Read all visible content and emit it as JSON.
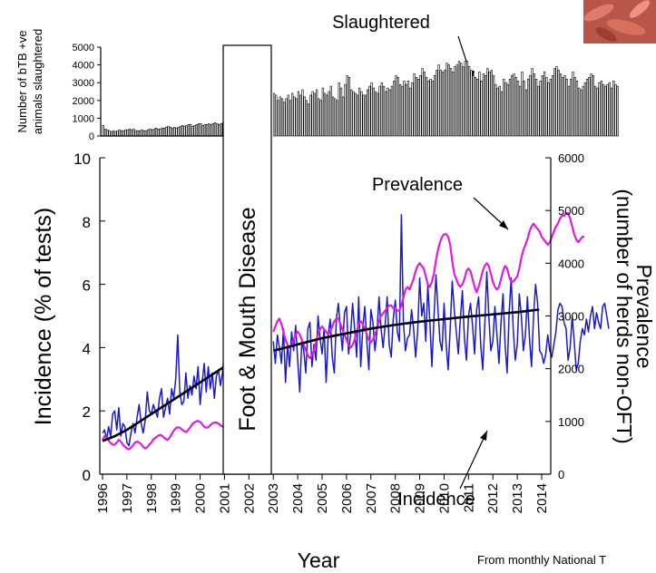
{
  "chart_data": [
    {
      "type": "bar",
      "name": "slaughtered",
      "ylabel_line1": "Number of bTB +ve",
      "ylabel_line2": "animals slaughtered",
      "ylim": [
        0,
        5000
      ],
      "yticks": [
        0,
        1000,
        2000,
        3000,
        4000,
        5000
      ],
      "annotation": "Slaughtered",
      "x_start": 1996.0,
      "x_step": 0.0833333,
      "segments": [
        {
          "x_start": 1996.0,
          "values": [
            600,
            400,
            350,
            300,
            250,
            300,
            250,
            300,
            350,
            300,
            300,
            350,
            350,
            400,
            350,
            400,
            300,
            300,
            300,
            350,
            300,
            300,
            350,
            400,
            350,
            400,
            450,
            400,
            400,
            450,
            450,
            500,
            550,
            500,
            450,
            500,
            450,
            500,
            550,
            600,
            550,
            600,
            650,
            650,
            550,
            600,
            650,
            700,
            700,
            600,
            650,
            650,
            700,
            650,
            700,
            750,
            700,
            650,
            700,
            750,
            700,
            850,
            800,
            750,
            700,
            750,
            700,
            800,
            750,
            700,
            900,
            850
          ]
        },
        {
          "x_start": 2003.0,
          "values": [
            2400,
            2300,
            2000,
            2200,
            2100,
            1900,
            2100,
            2300,
            2000,
            2400,
            2200,
            2100,
            2500,
            2300,
            2600,
            2200,
            2000,
            1800,
            2300,
            2500,
            2400,
            2600,
            2100,
            2000,
            2700,
            2400,
            2300,
            2500,
            2800,
            2200,
            2100,
            2000,
            3000,
            2700,
            2200,
            2900,
            3400,
            3300,
            2600,
            2500,
            2400,
            2300,
            2700,
            2500,
            2300,
            2300,
            2600,
            2800,
            3000,
            2700,
            2500,
            2400,
            2800,
            3000,
            2800,
            2500,
            2700,
            2600,
            2800,
            3100,
            3400,
            3300,
            2900,
            2800,
            3100,
            2900,
            3100,
            2700,
            3000,
            3500,
            3300,
            3200,
            3400,
            3800,
            3600,
            3300,
            3100,
            3200,
            3100,
            3400,
            3700,
            4000,
            3700,
            3600,
            3700,
            4100,
            4000,
            3800,
            3600,
            3900,
            4000,
            4200,
            4100,
            3900,
            4200,
            4200,
            3900,
            3700,
            3400,
            3300,
            3200,
            3600,
            3100,
            3500,
            3400,
            3800,
            3600,
            3700,
            3400,
            2900,
            2700,
            2800,
            2500,
            3200,
            3000,
            2900,
            3200,
            3400,
            3500,
            3300,
            3100,
            2800,
            3600,
            3100,
            2600,
            3200,
            3400,
            3800,
            3500,
            3200,
            2800,
            3100,
            3400,
            3600,
            3300,
            3000,
            3200,
            3400,
            3800,
            3900,
            3700,
            3500,
            3300,
            3400,
            3200,
            2800,
            3200,
            3600,
            3300,
            3100,
            2700,
            2600,
            2800,
            3000,
            3200,
            3300,
            3500,
            3400,
            2800,
            2700,
            3000,
            3100,
            2900,
            2800,
            2900,
            3000,
            2700,
            3100,
            2900,
            2800
          ]
        }
      ]
    },
    {
      "type": "line",
      "name": "main",
      "ylabel_left": "Incidence (% of tests)",
      "ylabel_right_line1": "Prevalence",
      "ylabel_right_line2": "(number of herds non-OFT)",
      "xlabel": "Year",
      "ylim_left": [
        0,
        10
      ],
      "ylim_right": [
        0,
        6000
      ],
      "yticks_left": [
        0,
        2,
        4,
        6,
        8,
        10
      ],
      "yticks_right": [
        0,
        1000,
        2000,
        3000,
        4000,
        5000,
        6000
      ],
      "xticks": [
        "1996",
        "1997",
        "1998",
        "1999",
        "2000",
        "2001",
        "2002",
        "2003",
        "2004",
        "2005",
        "2006",
        "2007",
        "2008",
        "2009",
        "2010",
        "2011",
        "2012",
        "2013",
        "2014"
      ],
      "gap_label": "Foot & Mouth Disease",
      "gap_range": [
        2001.0,
        2003.0
      ],
      "annotations": {
        "prevalence": "Prevalence",
        "incidence": "Incidence"
      },
      "colors": {
        "incidence": "#1a1acc",
        "prevalence": "#e01ae0",
        "trend": "#000000"
      },
      "series": [
        {
          "name": "Incidence",
          "axis": "left",
          "segments": [
            {
              "x_start": 1996.0,
              "x_step": 0.0833333,
              "values": [
                1.3,
                1.4,
                1.1,
                1.5,
                1.2,
                1.9,
                2.0,
                1.4,
                2.1,
                1.2,
                1.6,
                1.5,
                1.0,
                0.9,
                1.3,
                1.6,
                1.3,
                1.8,
                2.2,
                1.6,
                1.3,
                1.7,
                2.6,
                2.0,
                1.9,
                2.2,
                2.0,
                1.8,
                2.4,
                2.7,
                1.8,
                2.1,
                2.4,
                1.9,
                2.7,
                2.4,
                3.0,
                4.4,
                2.6,
                2.2,
                2.3,
                3.2,
                2.4,
                2.8,
                2.5,
                3.1,
                2.7,
                3.4,
                2.2,
                2.9,
                3.5,
                2.6,
                3.4,
                2.7,
                3.2,
                2.4,
                3.1,
                3.3,
                2.8,
                3.2,
                3.9,
                2.6,
                3.0,
                3.5,
                3.3,
                3.6,
                3.1,
                3.4,
                2.9,
                3.8,
                4.6,
                3.5
              ]
            },
            {
              "x_start": 2003.0,
              "x_step": 0.0833333,
              "values": [
                4.2,
                3.5,
                4.4,
                4.0,
                3.5,
                4.6,
                2.9,
                4.1,
                3.4,
                4.5,
                3.9,
                4.7,
                3.6,
                2.6,
                4.2,
                3.9,
                3.2,
                4.6,
                4.8,
                3.4,
                4.1,
                3.6,
                5.0,
                4.3,
                3.8,
                4.6,
                2.9,
                4.4,
                4.9,
                3.7,
                3.2,
                4.9,
                5.4,
                4.6,
                3.9,
                5.1,
                5.3,
                3.8,
                4.4,
                5.4,
                4.6,
                3.7,
                5.6,
                3.4,
                4.6,
                5.3,
                4.2,
                3.3,
                5.2,
                4.8,
                3.9,
                4.5,
                5.6,
                4.6,
                4.0,
                4.7,
                5.6,
                4.1,
                3.7,
                4.9,
                5.5,
                4.5,
                4.2,
                8.2,
                4.8,
                3.9,
                4.3,
                4.4,
                5.2,
                4.6,
                3.7,
                4.5,
                6.2,
                5.0,
                5.4,
                4.2,
                6.0,
                4.8,
                3.4,
                4.9,
                6.3,
                5.2,
                4.2,
                3.9,
                5.4,
                4.1,
                3.3,
                4.6,
                6.1,
                5.2,
                4.5,
                3.8,
                4.9,
                5.8,
                4.3,
                3.6,
                5.0,
                5.4,
                4.7,
                3.8,
                5.2,
                5.6,
                4.1,
                3.3,
                4.7,
                6.4,
                5.0,
                3.9,
                4.2,
                5.3,
                4.4,
                3.5,
                4.8,
                5.7,
                4.1,
                3.2,
                5.1,
                6.2,
                4.6,
                3.6,
                4.1,
                5.7,
                5.0,
                3.9,
                4.4,
                5.6,
                4.3,
                3.4,
                5.0,
                6.0,
                5.4,
                3.9,
                3.8,
                3.5,
                3.8,
                4.4,
                3.9,
                3.7,
                4.1,
                4.5,
                5.2,
                5.4,
                5.3,
                4.8,
                4.6,
                3.6,
                4.0,
                5.0,
                4.2,
                3.3,
                3.5,
                4.2,
                4.6,
                4.4,
                4.9,
                4.5,
                5.0,
                5.3,
                4.6,
                5.1,
                4.8,
                4.6,
                5.3,
                5.4,
                5.0,
                4.6
              ]
            }
          ]
        },
        {
          "name": "Prevalence",
          "axis": "right",
          "segments": [
            {
              "x_start": 1996.0,
              "x_step": 0.0833333,
              "values": [
                650,
                720,
                690,
                640,
                590,
                560,
                560,
                600,
                650,
                620,
                560,
                520,
                490,
                470,
                500,
                550,
                600,
                620,
                600,
                570,
                520,
                490,
                510,
                560,
                600,
                660,
                690,
                720,
                740,
                740,
                700,
                670,
                650,
                690,
                760,
                820,
                870,
                890,
                880,
                850,
                820,
                800,
                830,
                880,
                940,
                980,
                1000,
                1010,
                990,
                950,
                900,
                880,
                890,
                930,
                960,
                980,
                980,
                960,
                930,
                900,
                920,
                960,
                1000,
                1030,
                1040,
                1010,
                980,
                950,
                960,
                990,
                1000,
                990
              ]
            },
            {
              "x_start": 2003.0,
              "x_step": 0.0833333,
              "values": [
                2700,
                2800,
                2900,
                2950,
                2850,
                2700,
                2550,
                2450,
                2400,
                2450,
                2550,
                2650,
                2700,
                2650,
                2550,
                2450,
                2350,
                2250,
                2200,
                2250,
                2350,
                2500,
                2650,
                2750,
                2800,
                2750,
                2700,
                2650,
                2700,
                2800,
                2900,
                2950,
                2950,
                2850,
                2750,
                2650,
                2550,
                2450,
                2400,
                2450,
                2550,
                2700,
                2850,
                2900,
                2850,
                2750,
                2650,
                2550,
                2500,
                2550,
                2650,
                2750,
                2900,
                3000,
                3050,
                3100,
                3150,
                3200,
                3200,
                3150,
                3150,
                3100,
                3100,
                3200,
                3350,
                3500,
                3550,
                3500,
                3600,
                3700,
                3850,
                3950,
                4000,
                3950,
                3900,
                3750,
                3600,
                3550,
                3650,
                3800,
                4050,
                4250,
                4400,
                4500,
                4550,
                4550,
                4500,
                4350,
                4050,
                3800,
                3700,
                3600,
                3550,
                3600,
                3700,
                3850,
                3900,
                3850,
                3700,
                3550,
                3450,
                3550,
                3700,
                3850,
                3950,
                4000,
                3950,
                3800,
                3650,
                3550,
                3500,
                3550,
                3700,
                3850,
                3950,
                3900,
                3750,
                3650,
                3650,
                3700,
                3750,
                3900,
                4100,
                4250,
                4350,
                4450,
                4600,
                4700,
                4750,
                4700,
                4650,
                4600,
                4500,
                4450,
                4400,
                4350,
                4400,
                4500,
                4600,
                4700,
                4750,
                4850,
                4900,
                4900,
                4950,
                4950,
                4850,
                4700,
                4550,
                4450,
                4400,
                4450,
                4500,
                4500
              ]
            }
          ]
        },
        {
          "name": "Trend",
          "axis": "left",
          "segments": [
            {
              "x": [
                1996.0,
                1996.5,
                1997.0,
                1997.5,
                1998.0,
                1998.5,
                1999.0,
                1999.5,
                2000.0,
                2000.5,
                2001.0
              ],
              "y": [
                1.05,
                1.2,
                1.4,
                1.65,
                1.9,
                2.15,
                2.4,
                2.65,
                2.9,
                3.15,
                3.4
              ]
            },
            {
              "x": [
                2003.0,
                2004.0,
                2005.0,
                2006.0,
                2007.0,
                2008.0,
                2009.0,
                2010.0,
                2011.0,
                2012.0,
                2013.0,
                2013.9
              ],
              "y": [
                3.9,
                4.1,
                4.3,
                4.45,
                4.6,
                4.72,
                4.82,
                4.9,
                4.98,
                5.05,
                5.12,
                5.2
              ]
            }
          ]
        }
      ]
    }
  ],
  "footer_note": "From monthly National T"
}
